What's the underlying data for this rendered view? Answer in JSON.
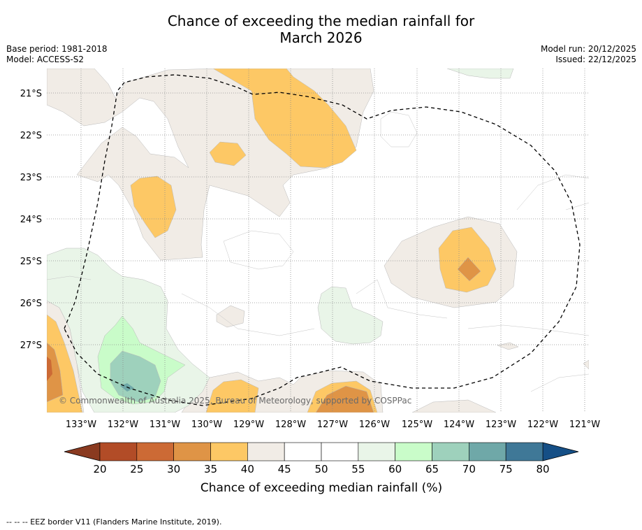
{
  "title_line1": "Chance of exceeding the median rainfall for",
  "title_line2": "March 2026",
  "base_period": "Base period: 1981-2018",
  "model": "Model: ACCESS-S2",
  "model_run": "Model run: 20/12/2025",
  "issued": "Issued: 22/12/2025",
  "copyright": "© Commonwealth of Australia 2025, Bureau of Meteorology, supported by COSPPac",
  "footnote": "--  --  -- EEZ border V11 (Flanders Marine Institute, 2019).",
  "lat_labels": [
    "21°S",
    "22°S",
    "23°S",
    "24°S",
    "25°S",
    "26°S",
    "27°S"
  ],
  "lon_labels": [
    "133°W",
    "132°W",
    "131°W",
    "130°W",
    "129°W",
    "128°W",
    "127°W",
    "126°W",
    "125°W",
    "124°W",
    "123°W",
    "122°W",
    "121°W"
  ],
  "colorbar": {
    "label": "Chance of exceeding median rainfall (%)",
    "ticks": [
      "20",
      "25",
      "30",
      "35",
      "40",
      "45",
      "50",
      "55",
      "60",
      "65",
      "70",
      "75",
      "80"
    ],
    "colors": [
      "#b24c27",
      "#cc6a35",
      "#df9446",
      "#fdc865",
      "#f1ece6",
      "#ffffff",
      "#ffffff",
      "#e9f5e8",
      "#c9fcc9",
      "#9ed1bc",
      "#6fa8a8",
      "#3f7897"
    ],
    "under_color": "#8a3a20",
    "over_color": "#154f86"
  }
}
